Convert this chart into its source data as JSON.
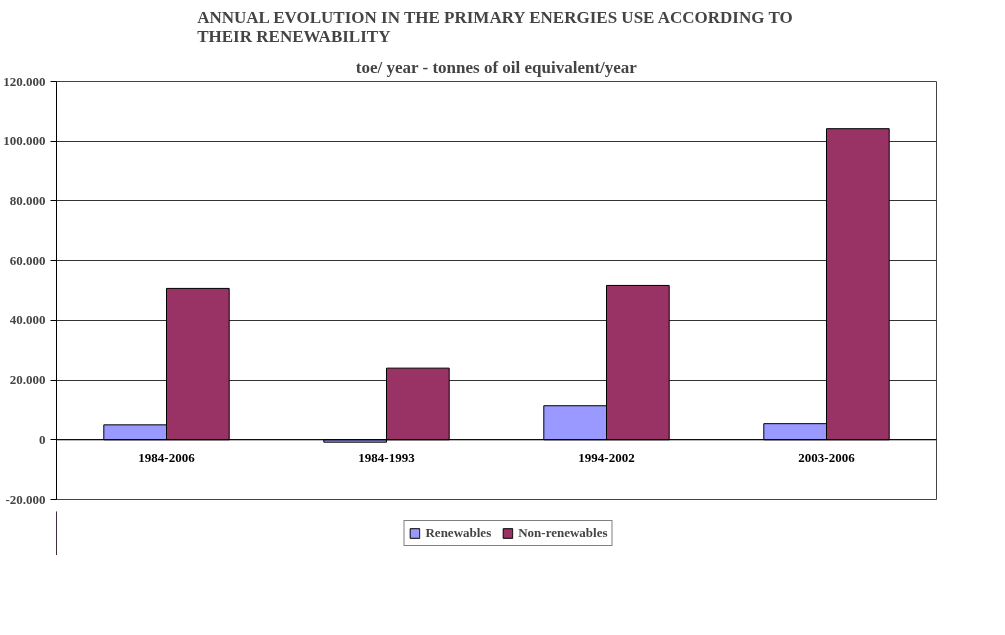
{
  "chart_data": {
    "type": "bar",
    "title": "ANNUAL EVOLUTION IN THE PRIMARY ENERGIES USE ACCORDING TO THEIR RENEWABILITY",
    "subtitle": "toe/ year - tonnes of oil equivalent/year",
    "categories": [
      "1984-2006",
      "1984-1993",
      "1994-2002",
      "2003-2006"
    ],
    "series": [
      {
        "name": "Renewables",
        "color": "#9999ff",
        "values": [
          5000,
          -800,
          11400,
          5400
        ]
      },
      {
        "name": "Non-renewables",
        "color": "#993366",
        "values": [
          50700,
          24000,
          51700,
          104200
        ]
      }
    ],
    "ylim": [
      -20000,
      120000
    ],
    "yticks": [
      {
        "value": -20000,
        "label": "-20.000"
      },
      0,
      {
        "value": 20000,
        "label": "20.000"
      },
      {
        "value": 40000,
        "label": "40.000"
      },
      {
        "value": 60000,
        "label": "60.000"
      },
      {
        "value": 80000,
        "label": "80.000"
      },
      {
        "value": 100000,
        "label": "100.000"
      },
      {
        "value": 120000,
        "label": "120.000"
      }
    ],
    "grid": "y",
    "legend": "bottom"
  }
}
